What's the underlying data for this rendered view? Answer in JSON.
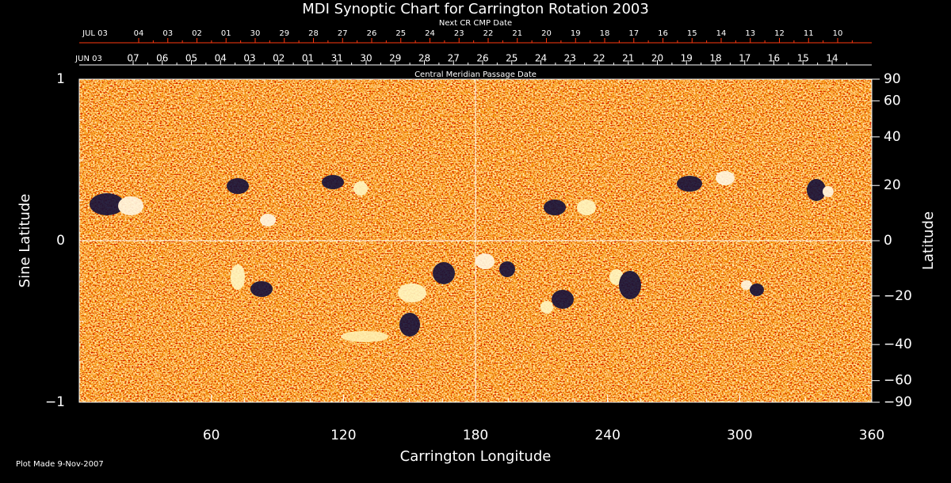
{
  "chart_data": {
    "type": "heatmap",
    "title": "MDI Synoptic Chart for Carrington Rotation 2003",
    "x_label": "Carrington Longitude",
    "y_label": "Sine Latitude",
    "y2_label": "Latitude",
    "footer": "Plot Made  9-Nov-2007",
    "xlim": [
      0,
      360
    ],
    "xticks": [
      60,
      120,
      180,
      240,
      300,
      360
    ],
    "ylim": [
      1,
      -1
    ],
    "yticks": [
      1,
      0,
      {
        "value": -1,
        "label": "−1"
      }
    ],
    "y2_scale": "sine",
    "y2lim": [
      90,
      -90
    ],
    "y2ticks": [
      90,
      60,
      40,
      20,
      0,
      {
        "value": -20,
        "label": "−20"
      },
      {
        "value": -40,
        "label": "−40"
      },
      {
        "value": -60,
        "label": "−60"
      },
      {
        "value": -90,
        "label": "−90"
      }
    ],
    "top_axes": [
      {
        "title": "Next CR CMP Date",
        "start_label": "JUL 03",
        "color": "#ff3a10",
        "labels": [
          "04",
          "03",
          "02",
          "01",
          "30",
          "29",
          "28",
          "27",
          "26",
          "25",
          "24",
          "23",
          "22",
          "21",
          "20",
          "19",
          "18",
          "17",
          "16",
          "15",
          "14",
          "13",
          "12",
          "11",
          "10"
        ]
      },
      {
        "title": "Central Meridian Passage Date",
        "start_label": "JUN 03",
        "color": "#ffffff",
        "labels": [
          "07",
          "06",
          "05",
          "04",
          "03",
          "02",
          "01",
          "31",
          "30",
          "29",
          "28",
          "27",
          "26",
          "25",
          "24",
          "23",
          "22",
          "21",
          "20",
          "19",
          "18",
          "17",
          "16",
          "15",
          "14"
        ]
      }
    ]
  }
}
